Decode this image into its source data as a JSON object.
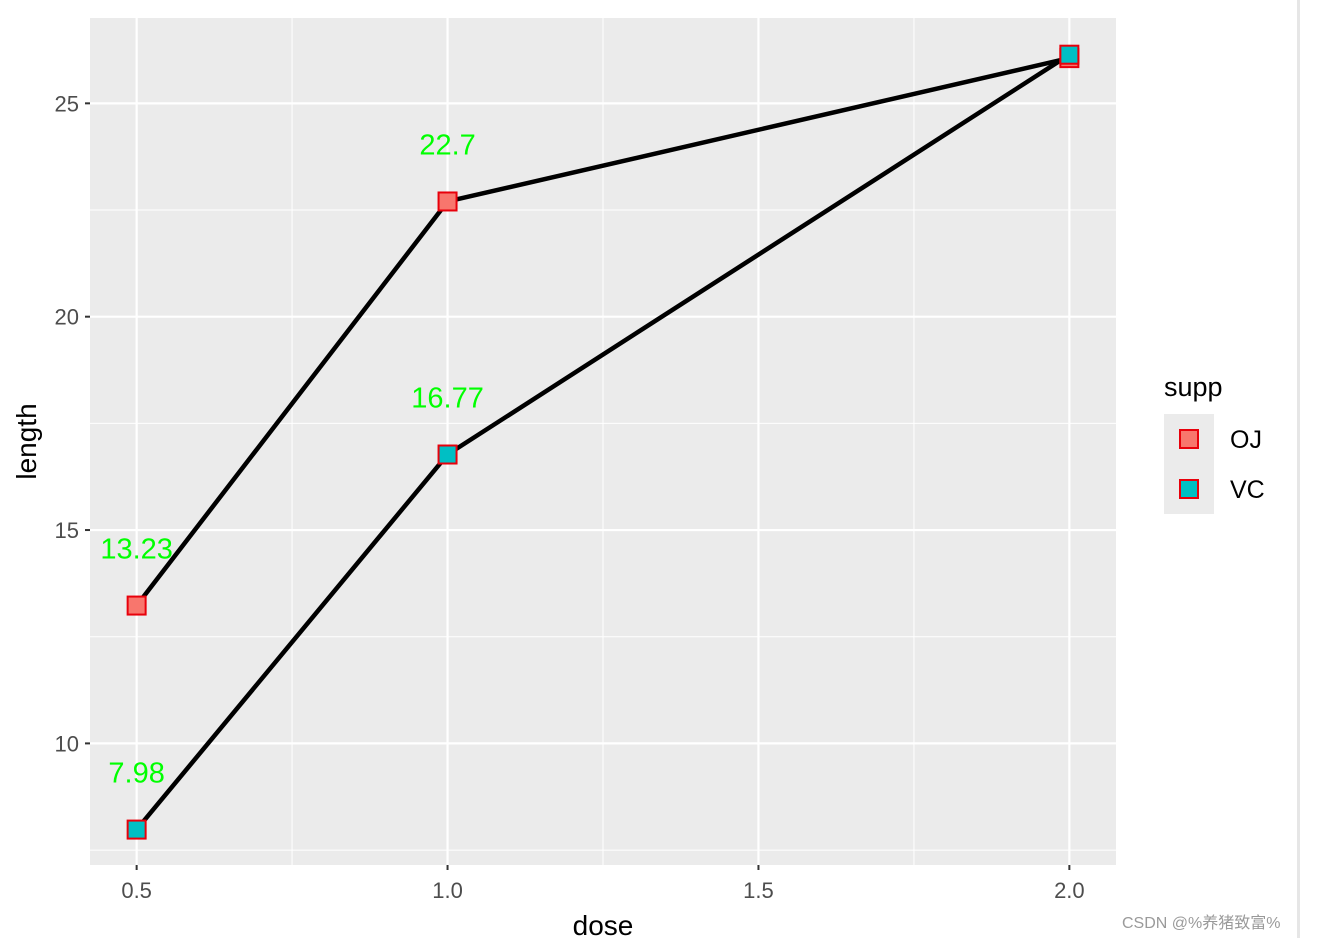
{
  "chart_data": {
    "type": "line",
    "xlabel": "dose",
    "ylabel": "length",
    "x": [
      0.5,
      1.0,
      2.0
    ],
    "xlim": [
      0.425,
      2.075
    ],
    "ylim": [
      7.15,
      27.0
    ],
    "x_ticks": [
      0.5,
      1.0,
      1.5,
      2.0
    ],
    "x_tick_labels": [
      "0.5",
      "1.0",
      "1.5",
      "2.0"
    ],
    "y_ticks": [
      10,
      15,
      20,
      25
    ],
    "y_tick_labels": [
      "10",
      "15",
      "20",
      "25"
    ],
    "grid": true,
    "series": [
      {
        "name": "OJ",
        "values": [
          13.23,
          22.7,
          26.06
        ],
        "labels": [
          "13.23",
          "22.7",
          ""
        ],
        "fill": "#F8766D"
      },
      {
        "name": "VC",
        "values": [
          7.98,
          16.77,
          26.14
        ],
        "labels": [
          "7.98",
          "16.77",
          ""
        ],
        "fill": "#00BFC4"
      }
    ],
    "legend": {
      "title": "supp",
      "placement": "right"
    },
    "colors": {
      "panel": "#EBEBEB",
      "grid": "#FFFFFF",
      "line": "#000000",
      "point_outline": "#E8000B",
      "label": "#00FF00",
      "tick_text": "#4D4D4D",
      "axis_title": "#000000"
    }
  },
  "watermark": "CSDN @%养猪致富%"
}
